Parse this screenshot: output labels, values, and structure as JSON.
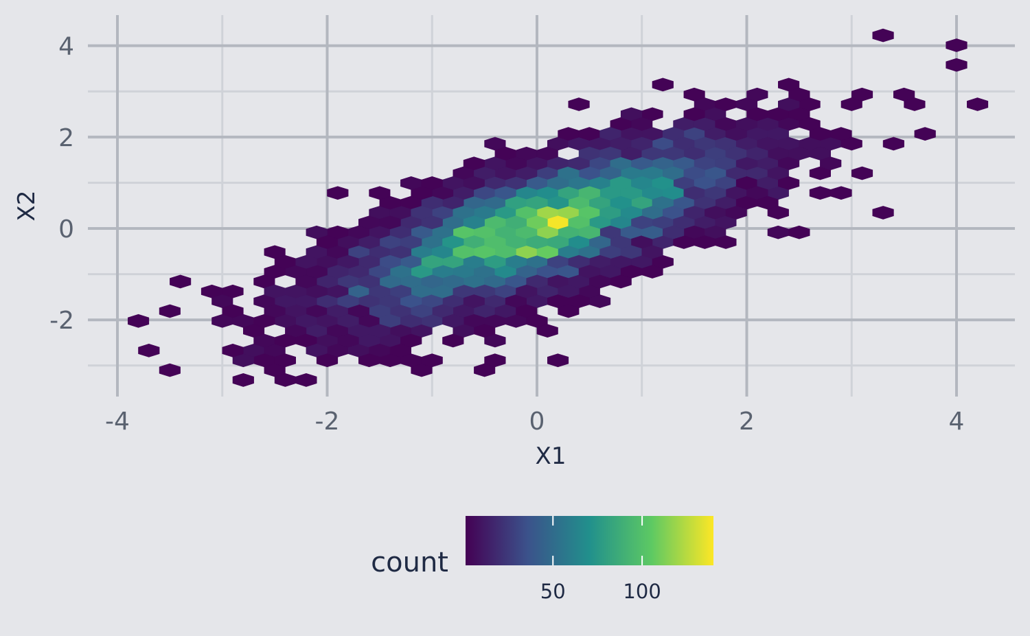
{
  "chart_data": {
    "type": "heatmap",
    "subtype": "hexbin",
    "title": "",
    "xlabel": "X1",
    "ylabel": "X2",
    "xlim": [
      -4.2,
      4.6
    ],
    "ylim": [
      -3.4,
      4.6
    ],
    "x_ticks": [
      -4,
      -2,
      0,
      2,
      4
    ],
    "y_ticks": [
      -2,
      0,
      2,
      4
    ],
    "x_tick_labels": [
      "-4",
      "-2",
      "0",
      "2",
      "4"
    ],
    "y_tick_labels": [
      "-2",
      "0",
      "2",
      "4"
    ],
    "grid": true,
    "hex_size": 0.2,
    "hex_origin_y": -0.3,
    "correlation": 0.75,
    "count_max": 140,
    "peak": {
      "x": -0.27,
      "y": -0.47,
      "count": 138
    },
    "isolated_bins": [
      {
        "x": 3.2,
        "y": 4.3,
        "count": 1
      },
      {
        "x": 4.1,
        "y": 4.07,
        "count": 1
      },
      {
        "x": 4.1,
        "y": 3.63,
        "count": 1
      },
      {
        "x": -3.9,
        "y": -2.0,
        "count": 1
      },
      {
        "x": -3.5,
        "y": -3.07,
        "count": 1
      },
      {
        "x": -2.5,
        "y": -3.3,
        "count": 1
      },
      {
        "x": 3.7,
        "y": 2.1,
        "count": 1
      },
      {
        "x": 3.2,
        "y": 0.4,
        "count": 1
      },
      {
        "x": -0.4,
        "y": -2.87,
        "count": 1
      },
      {
        "x": 0.1,
        "y": -2.87,
        "count": 1
      }
    ],
    "legend": {
      "title": "count",
      "position": "bottom",
      "ticks": [
        50,
        100
      ],
      "tick_labels": [
        "50",
        "100"
      ],
      "range": [
        1,
        140
      ],
      "palette": [
        "#440154",
        "#3b528b",
        "#21908c",
        "#5dc963",
        "#fde725"
      ]
    }
  }
}
